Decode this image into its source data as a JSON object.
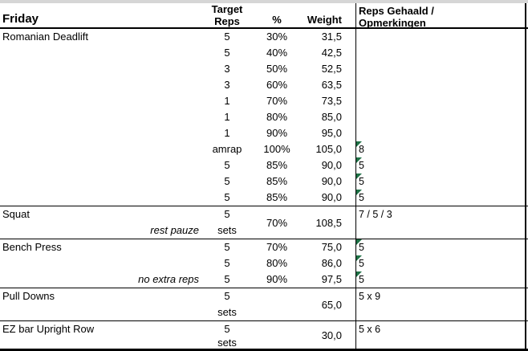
{
  "meta": {
    "top_strip_color": "#d6d6d6",
    "flag_color": "#1e7145",
    "flag_icon": "error-flag-triangle"
  },
  "header": {
    "day_label": "Friday",
    "target_reps_line1": "Target",
    "target_reps_line2": "Reps",
    "percent_label": "%",
    "weight_label": "Weight",
    "result_line1": "Reps Gehaald /",
    "result_line2": "Opmerkingen"
  },
  "sections": {
    "romanian_deadlift": {
      "name": "Romanian Deadlift",
      "rows": [
        {
          "reps": "5",
          "pct": "30%",
          "weight": "31,5",
          "result": "",
          "flag": false
        },
        {
          "reps": "5",
          "pct": "40%",
          "weight": "42,5",
          "result": "",
          "flag": false
        },
        {
          "reps": "3",
          "pct": "50%",
          "weight": "52,5",
          "result": "",
          "flag": false
        },
        {
          "reps": "3",
          "pct": "60%",
          "weight": "63,5",
          "result": "",
          "flag": false
        },
        {
          "reps": "1",
          "pct": "70%",
          "weight": "73,5",
          "result": "",
          "flag": false
        },
        {
          "reps": "1",
          "pct": "80%",
          "weight": "85,0",
          "result": "",
          "flag": false
        },
        {
          "reps": "1",
          "pct": "90%",
          "weight": "95,0",
          "result": "",
          "flag": false
        },
        {
          "reps": "amrap",
          "pct": "100%",
          "weight": "105,0",
          "result": "8",
          "flag": true
        },
        {
          "reps": "5",
          "pct": "85%",
          "weight": "90,0",
          "result": "5",
          "flag": true
        },
        {
          "reps": "5",
          "pct": "85%",
          "weight": "90,0",
          "result": "5",
          "flag": true
        },
        {
          "reps": "5",
          "pct": "85%",
          "weight": "90,0",
          "result": "5",
          "flag": true
        }
      ]
    },
    "squat": {
      "name": "Squat",
      "note": "rest pauze",
      "reps": "5",
      "reps_unit": "sets",
      "pct": "70%",
      "weight": "108,5",
      "result": "7 / 5 / 3"
    },
    "bench_press": {
      "name": "Bench Press",
      "note": "no extra reps",
      "rows": [
        {
          "reps": "5",
          "pct": "70%",
          "weight": "75,0",
          "result": "5",
          "flag": true
        },
        {
          "reps": "5",
          "pct": "80%",
          "weight": "86,0",
          "result": "5",
          "flag": true
        },
        {
          "reps": "5",
          "pct": "90%",
          "weight": "97,5",
          "result": "5",
          "flag": true
        }
      ]
    },
    "pull_downs": {
      "name": "Pull Downs",
      "reps": "5",
      "reps_unit": "sets",
      "pct": "",
      "weight": "65,0",
      "result": "5 x 9"
    },
    "ez_bar_upright_row": {
      "name": "EZ bar Upright Row",
      "reps": "5",
      "reps_unit": "sets",
      "pct": "",
      "weight": "30,0",
      "result": "5 x 6"
    }
  }
}
